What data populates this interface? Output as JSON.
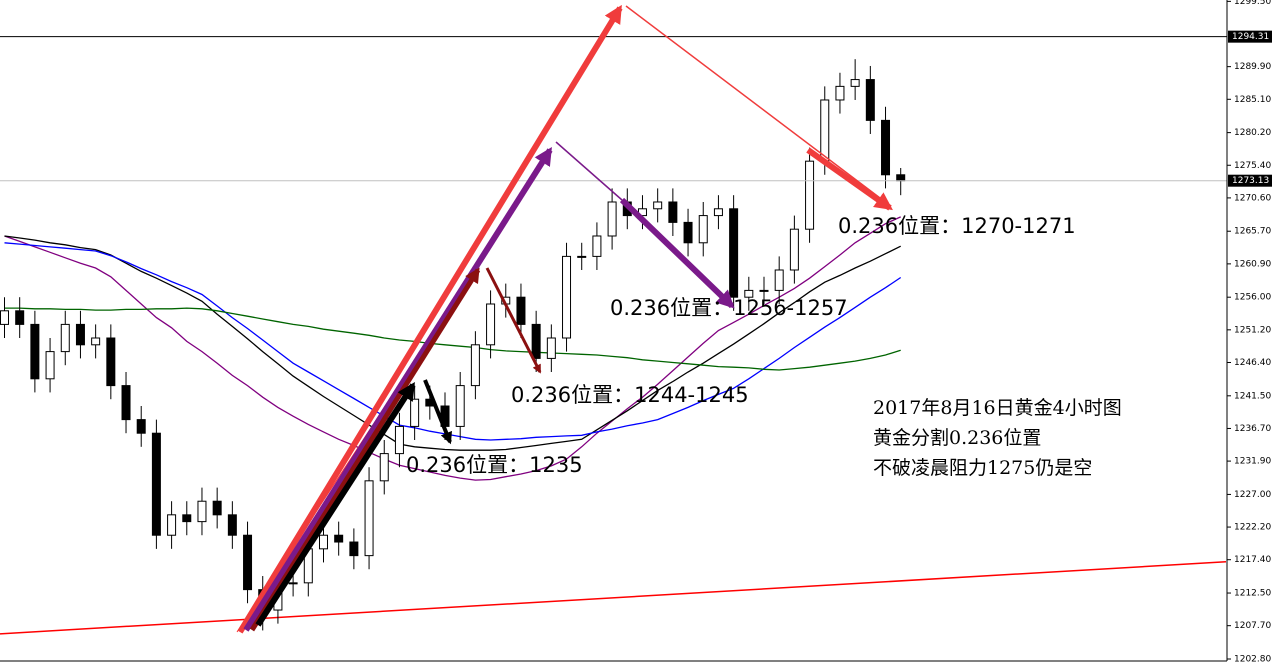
{
  "chart_data": {
    "type": "candlestick",
    "categories": [
      null,
      null,
      null,
      null,
      null,
      null,
      null,
      null,
      null,
      null,
      null,
      null,
      null,
      null,
      null,
      null,
      null,
      null,
      null,
      null,
      null,
      null,
      null,
      null,
      null,
      null,
      null,
      null,
      null,
      null,
      null,
      null,
      null,
      null,
      null,
      null,
      null,
      null,
      null,
      null,
      null,
      null,
      null,
      null,
      null,
      null,
      null,
      null,
      null,
      null,
      null,
      null,
      null,
      null,
      null,
      null,
      null,
      null,
      null,
      null
    ],
    "open": [
      1252,
      1254,
      1252,
      1244,
      1248,
      1252,
      1249,
      1250,
      1243,
      1238,
      1236,
      1221,
      1224,
      1223,
      1226,
      1224,
      1221,
      1213,
      1210,
      1214,
      1214,
      1219,
      1221,
      1220,
      1218,
      1229,
      1233,
      1237,
      1241,
      1240,
      1237,
      1243,
      1249,
      1255,
      1256,
      1252,
      1247,
      1250,
      1262,
      1262,
      1265,
      1270,
      1268,
      1269,
      1270,
      1267,
      1264,
      1268,
      1269,
      1256,
      1257,
      1257,
      1260,
      1266,
      1276,
      1285,
      1287,
      1288,
      1282,
      1274
    ],
    "high": [
      1256,
      1256,
      1254,
      1250,
      1254,
      1254,
      1252,
      1252,
      1245,
      1240,
      1238,
      1226,
      1226,
      1228,
      1228,
      1226,
      1223,
      1215,
      1216,
      1216,
      1221,
      1223,
      1223,
      1222,
      1231,
      1235,
      1239,
      1243,
      1243,
      1242,
      1245,
      1251,
      1257,
      1258,
      1258,
      1254,
      1252,
      1264,
      1264,
      1267,
      1272,
      1272,
      1271,
      1272,
      1272,
      1269,
      1270,
      1271,
      1271,
      1259,
      1259,
      1262,
      1268,
      1278,
      1287,
      1289,
      1291,
      1290,
      1284,
      1275
    ],
    "low": [
      1250,
      1250,
      1242,
      1242,
      1246,
      1247,
      1247,
      1241,
      1236,
      1234,
      1219,
      1219,
      1221,
      1221,
      1222,
      1219,
      1211,
      1207,
      1208,
      1212,
      1212,
      1217,
      1218,
      1216,
      1216,
      1227,
      1231,
      1235,
      1238,
      1235,
      1235,
      1241,
      1247,
      1253,
      1250,
      1245,
      1245,
      1248,
      1260,
      1260,
      1263,
      1266,
      1266,
      1267,
      1265,
      1262,
      1262,
      1266,
      1254,
      1254,
      1255,
      1255,
      1258,
      1264,
      1274,
      1283,
      1285,
      1280,
      1272,
      1271
    ],
    "close": [
      1254,
      1252,
      1244,
      1248,
      1252,
      1249,
      1250,
      1243,
      1238,
      1236,
      1221,
      1224,
      1223,
      1226,
      1224,
      1221,
      1213,
      1210,
      1214,
      1214,
      1219,
      1221,
      1220,
      1218,
      1229,
      1233,
      1237,
      1241,
      1240,
      1237,
      1243,
      1249,
      1255,
      1256,
      1252,
      1247,
      1250,
      1262,
      1262,
      1265,
      1270,
      1268,
      1269,
      1270,
      1267,
      1264,
      1268,
      1269,
      1256,
      1257,
      1257,
      1260,
      1266,
      1276,
      1285,
      1287,
      1288,
      1282,
      1274,
      1273.13
    ],
    "candle_colors": {
      "up": "#ffffff",
      "down": "#000000",
      "outline": "#000000"
    },
    "series": [
      {
        "color": "#800080",
        "values": [
          1265,
          1264.2,
          1263.4,
          1262.6,
          1261.8,
          1261,
          1260.3,
          1259,
          1257,
          1255,
          1253,
          1251.5,
          1249.5,
          1248,
          1246.3,
          1244.5,
          1243,
          1241.3,
          1239.8,
          1238.5,
          1237.3,
          1236.2,
          1235.1,
          1234.2,
          1233.2,
          1232.2,
          1231.3,
          1230.8,
          1230.3,
          1229.8,
          1229.4,
          1229.1,
          1229.2,
          1229.6,
          1230,
          1230.5,
          1231.2,
          1232.2,
          1234,
          1236,
          1237.8,
          1239.6,
          1241.3,
          1243.2,
          1245.2,
          1247.2,
          1249.2,
          1251.1,
          1252.3,
          1253.5,
          1254.8,
          1256,
          1257.3,
          1258.8,
          1260.5,
          1262.2,
          1264,
          1265.4,
          1266.8,
          1267.8
        ]
      },
      {
        "color": "#000000",
        "values": [
          1265,
          1264.7,
          1264.4,
          1264,
          1263.7,
          1263.3,
          1263,
          1262.2,
          1261,
          1259.8,
          1258.8,
          1257.7,
          1256.6,
          1255.4,
          1253.5,
          1251.7,
          1249.9,
          1248,
          1246.2,
          1244.4,
          1242.9,
          1241.4,
          1240,
          1238.6,
          1237.2,
          1235.8,
          1234.4,
          1234,
          1233.8,
          1233.6,
          1233.5,
          1233.5,
          1233.5,
          1233.6,
          1233.9,
          1234.2,
          1234.5,
          1234.8,
          1235.1,
          1236.5,
          1237.9,
          1239.3,
          1240.8,
          1242.3,
          1243.6,
          1245,
          1246.3,
          1247.7,
          1249.1,
          1250.6,
          1252.1,
          1253.7,
          1255.2,
          1256.8,
          1258.2,
          1259.2,
          1260.3,
          1261.3,
          1262.4,
          1263.5
        ]
      },
      {
        "color": "#0000ff",
        "values": [
          1264,
          1263.8,
          1263.6,
          1263.4,
          1263.2,
          1263,
          1262.8,
          1262.1,
          1261.2,
          1260.2,
          1259.3,
          1258.3,
          1257.4,
          1256.4,
          1254.7,
          1253,
          1251.4,
          1249.7,
          1248,
          1246.3,
          1245,
          1243.7,
          1242.4,
          1241.1,
          1239.8,
          1238.5,
          1237.2,
          1236.8,
          1236.3,
          1235.9,
          1235.5,
          1235.1,
          1235,
          1235.1,
          1235.2,
          1235.4,
          1235.5,
          1235.6,
          1235.7,
          1236.2,
          1236.6,
          1237.1,
          1237.5,
          1238,
          1238.9,
          1239.8,
          1240.8,
          1241.7,
          1242.6,
          1244,
          1245.5,
          1247,
          1248.6,
          1250.1,
          1251.6,
          1253,
          1254.5,
          1256,
          1257.4,
          1258.9
        ]
      },
      {
        "color": "#006400",
        "values": [
          1254.4,
          1254.4,
          1254.3,
          1254.3,
          1254.2,
          1254.2,
          1254.1,
          1254.1,
          1254.2,
          1254.2,
          1254.3,
          1254.3,
          1254.4,
          1254.3,
          1254,
          1253.6,
          1253.2,
          1252.8,
          1252.4,
          1252,
          1251.7,
          1251.3,
          1251,
          1250.7,
          1250.4,
          1250,
          1249.7,
          1249.5,
          1249.2,
          1249,
          1248.8,
          1248.6,
          1248.3,
          1248.1,
          1248,
          1247.9,
          1247.8,
          1247.7,
          1247.6,
          1247.5,
          1247.3,
          1247.1,
          1246.8,
          1246.6,
          1246.4,
          1246.2,
          1246,
          1245.8,
          1245.7,
          1245.6,
          1245.4,
          1245.3,
          1245.5,
          1245.7,
          1246,
          1246.3,
          1246.6,
          1247,
          1247.5,
          1248.2
        ]
      }
    ],
    "trend_line": {
      "color": "#ff0000",
      "values": [
        1206.5,
        1217.1
      ]
    },
    "price_lines": [
      {
        "value": 1294.31,
        "color": "#000000"
      },
      {
        "value": 1273.13,
        "color": "#c0c0c0"
      }
    ],
    "ylim": [
      1202.8,
      1299.7
    ],
    "yticks": [
      {
        "value": 1202.8,
        "label": "1202.80"
      },
      {
        "value": 1207.7,
        "label": "1207.70"
      },
      {
        "value": 1212.5,
        "label": "1212.50"
      },
      {
        "value": 1217.4,
        "label": "1217.40"
      },
      {
        "value": 1222.2,
        "label": "1222.20"
      },
      {
        "value": 1227,
        "label": "1227.00"
      },
      {
        "value": 1231.9,
        "label": "1231.90"
      },
      {
        "value": 1236.7,
        "label": "1236.70"
      },
      {
        "value": 1241.5,
        "label": "1241.50"
      },
      {
        "value": 1246.4,
        "label": "1246.40"
      },
      {
        "value": 1251.2,
        "label": "1251.20"
      },
      {
        "value": 1256,
        "label": "1256.00"
      },
      {
        "value": 1260.9,
        "label": "1260.90"
      },
      {
        "value": 1265.7,
        "label": "1265.70"
      },
      {
        "value": 1270.6,
        "label": "1270.60"
      },
      {
        "value": 1275.4,
        "label": "1275.40"
      },
      {
        "value": 1280.2,
        "label": "1280.20"
      },
      {
        "value": 1285.1,
        "label": "1285.10"
      },
      {
        "value": 1289.9,
        "label": "1289.90"
      },
      {
        "value": 1299.5,
        "label": "1299.50"
      }
    ],
    "annotations": [
      "0.236位置：1270-1271",
      "0.236位置：1256-1257",
      "0.236位置：1244-1245",
      "0.236位置：1235"
    ],
    "note": [
      "2017年8月16日黄金4小时图",
      "黄金分割0.236位置",
      "不破凌晨阻力1275仍是空"
    ]
  }
}
